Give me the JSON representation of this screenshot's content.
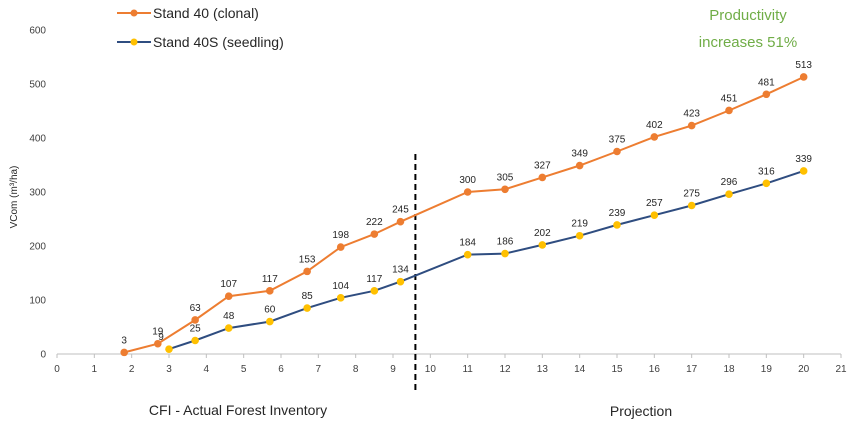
{
  "chart_data": {
    "type": "line",
    "title": "",
    "xlabel": "",
    "ylabel": "VCom (m³/ha)",
    "xlim": [
      0,
      21
    ],
    "ylim": [
      0,
      600
    ],
    "x_ticks": [
      0,
      1,
      2,
      3,
      4,
      5,
      6,
      7,
      8,
      9,
      10,
      11,
      12,
      13,
      14,
      15,
      16,
      17,
      18,
      19,
      20,
      21
    ],
    "y_ticks": [
      0,
      100,
      200,
      300,
      400,
      500,
      600
    ],
    "grid": false,
    "legend_position": "top-left",
    "series": [
      {
        "name": "Stand 40 (clonal)",
        "color": "#ED7D31",
        "x": [
          1.8,
          2.7,
          3.7,
          4.6,
          5.7,
          6.7,
          7.6,
          8.5,
          9.2,
          11.0,
          12.0,
          13.0,
          14.0,
          15.0,
          16.0,
          17.0,
          18.0,
          19.0,
          20.0
        ],
        "values": [
          3,
          19,
          63,
          107,
          117,
          153,
          198,
          222,
          245,
          300,
          305,
          327,
          349,
          375,
          402,
          423,
          451,
          481,
          513
        ],
        "labels": [
          "3",
          "19",
          "63",
          "107",
          "117",
          "153",
          "198",
          "222",
          "245",
          "300",
          "305",
          "327",
          "349",
          "375",
          "402",
          "423",
          "451",
          "481",
          "513"
        ]
      },
      {
        "name": "Stand 40S (seedling)",
        "color": "#2F4D80",
        "marker_color": "#FFC000",
        "x": [
          3.0,
          3.7,
          4.6,
          5.7,
          6.7,
          7.6,
          8.5,
          9.2,
          11.0,
          12.0,
          13.0,
          14.0,
          15.0,
          16.0,
          17.0,
          18.0,
          19.0,
          20.0
        ],
        "values": [
          9,
          25,
          48,
          60,
          85,
          104,
          117,
          134,
          184,
          186,
          202,
          219,
          239,
          257,
          275,
          296,
          316,
          339
        ],
        "labels": [
          "9",
          "25",
          "48",
          "60",
          "85",
          "104",
          "117",
          "134",
          "184",
          "186",
          "202",
          "219",
          "239",
          "257",
          "275",
          "296",
          "316",
          "339"
        ]
      }
    ],
    "divider_x": 9.6,
    "annotations": {
      "left_region": "CFI - Actual Forest Inventory",
      "right_region": "Projection",
      "note_line1": "Productivity",
      "note_line2": "increases 51%",
      "note_color": "#70AD47"
    }
  }
}
